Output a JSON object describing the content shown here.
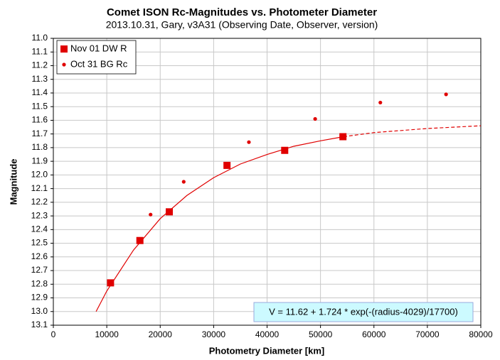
{
  "chart_data": {
    "type": "scatter",
    "title": "Comet ISON Rc-Magnitudes  vs. Photometer Diameter",
    "subtitle": "2013.10.31,  Gary,  v3A31 (Observing Date, Observer, version)",
    "x_label": "Photometry Diameter  [km]",
    "y_label": "Magnitude",
    "annotation": "V = 11.62 + 1.724 * exp(-(radius-4029)/17700)",
    "xlim": [
      0,
      80000
    ],
    "xticks": [
      0,
      10000,
      20000,
      30000,
      40000,
      50000,
      60000,
      70000,
      80000
    ],
    "ylim": [
      13.1,
      11.0
    ],
    "yticks": [
      {
        "value": 11.0,
        "label": "11.0"
      },
      11.1,
      11.2,
      11.3,
      11.4,
      11.5,
      11.6,
      11.7,
      11.8,
      11.9,
      {
        "value": 12.0,
        "label": "12.0"
      },
      12.1,
      12.2,
      12.3,
      12.4,
      12.5,
      12.6,
      12.7,
      12.8,
      12.9,
      {
        "value": 13.0,
        "label": "13.0"
      },
      13.1
    ],
    "grid": true,
    "legend": "top-left",
    "series": [
      {
        "name": "Nov 01 DW R",
        "color": "#e00000",
        "marker": "square",
        "x": [
          10700,
          16200,
          21700,
          32500,
          43300,
          54200
        ],
        "values": [
          12.79,
          12.48,
          12.27,
          11.93,
          11.82,
          11.72
        ]
      },
      {
        "name": "Oct 31 BG Rc",
        "color": "#e00000",
        "marker": "circle",
        "x": [
          18200,
          24400,
          36600,
          49000,
          61200,
          73500
        ],
        "values": [
          12.29,
          12.05,
          11.76,
          11.59,
          11.47,
          11.41
        ]
      }
    ],
    "fit": {
      "color": "#e00000",
      "x": [
        8000,
        10000,
        15000,
        20000,
        25000,
        30000,
        35000,
        40000,
        45000,
        50000,
        54300
      ],
      "values": [
        13.0,
        12.85,
        12.55,
        12.32,
        12.15,
        12.02,
        11.92,
        11.85,
        11.79,
        11.75,
        11.72
      ]
    },
    "fit_extension": {
      "color": "#e00000",
      "dashed": true,
      "x": [
        54300,
        60000,
        70000,
        80000
      ],
      "values": [
        11.72,
        11.69,
        11.66,
        11.64
      ]
    }
  }
}
